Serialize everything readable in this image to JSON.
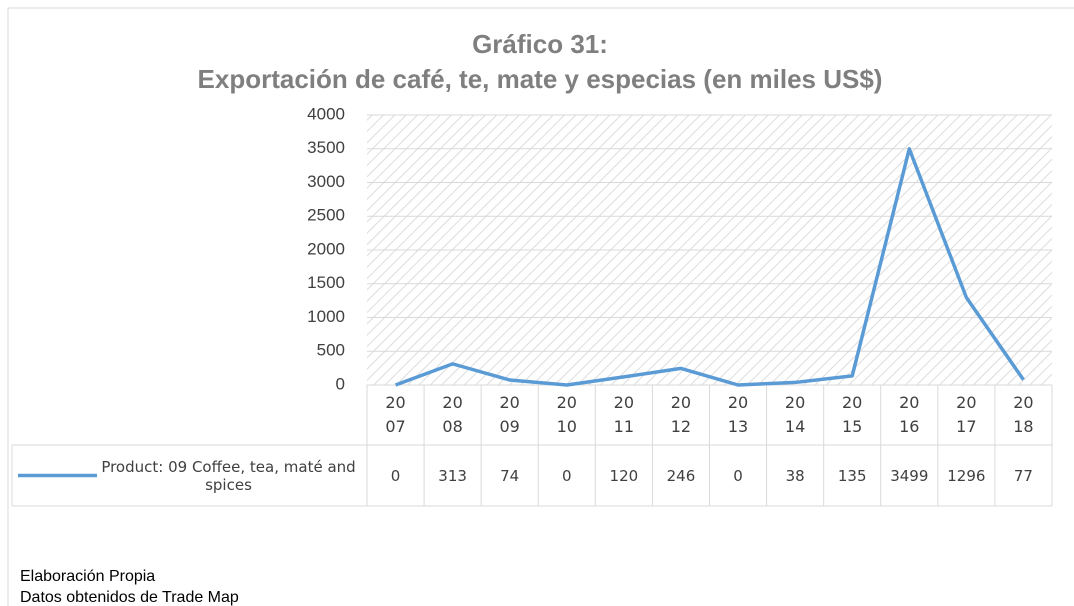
{
  "chart_data": {
    "type": "line",
    "title": "Gráfico 31:",
    "subtitle": "Exportación de café, te, mate y especias (en miles US$)",
    "categories": [
      "2007",
      "2008",
      "2009",
      "2010",
      "2011",
      "2012",
      "2013",
      "2014",
      "2015",
      "2016",
      "2017",
      "2018"
    ],
    "series": [
      {
        "name": "Product: 09 Coffee, tea, maté and spices",
        "color": "#5b9bd5",
        "values": [
          0,
          313,
          74,
          0,
          120,
          246,
          0,
          38,
          135,
          3499,
          1296,
          77
        ]
      }
    ],
    "ylim": [
      0,
      4000
    ],
    "yticks": [
      0,
      500,
      1000,
      1500,
      2000,
      2500,
      3000,
      3500,
      4000
    ],
    "grid": true,
    "notes": [
      "Elaboración Propia",
      "Datos obtenidos de Trade Map"
    ]
  }
}
